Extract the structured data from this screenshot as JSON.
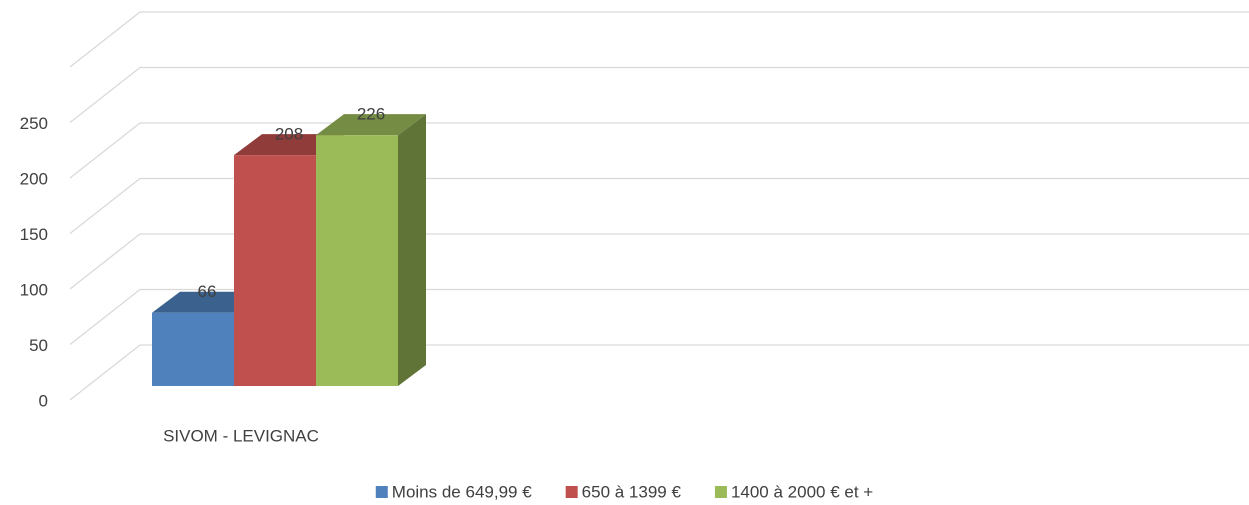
{
  "chart_data": {
    "type": "bar3d",
    "categories": [
      "SIVOM - LEVIGNAC"
    ],
    "series": [
      {
        "name": "Moins de 649,99 €",
        "color": "#4f81bd",
        "values": [
          66
        ]
      },
      {
        "name": "650 à 1399 €",
        "color": "#c0504d",
        "values": [
          208
        ]
      },
      {
        "name": "1400 à 2000 € et +",
        "color": "#9bbb59",
        "values": [
          226
        ]
      }
    ],
    "ylim": [
      0,
      300
    ],
    "yticks": [
      0,
      50,
      100,
      150,
      200,
      250
    ],
    "grid": true,
    "legend": "bottom"
  }
}
